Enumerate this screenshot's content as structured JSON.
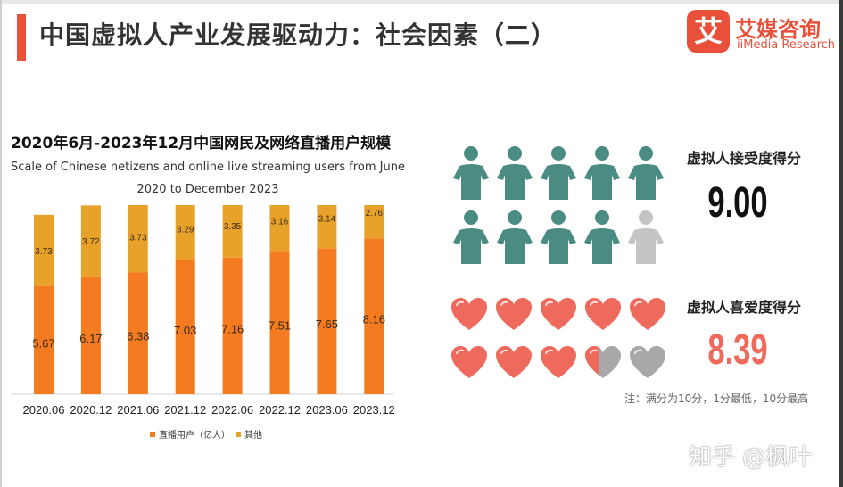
{
  "header": {
    "title": "中国虚拟人产业发展驱动力：社会因素（二）",
    "logo_mark": "艾",
    "logo_cn": "艾媒咨询",
    "logo_en": "iiMedia Research"
  },
  "chart_data": {
    "type": "bar",
    "stacked": true,
    "title": "2020年6月-2023年12月中国网民及网络直播用户规模",
    "subtitle_line1": "Scale of Chinese netizens and online live streaming users from June",
    "subtitle_line2": "2020 to December 2023",
    "categories": [
      "2020.06",
      "2020.12",
      "2021.06",
      "2021.12",
      "2022.06",
      "2022.12",
      "2023.06",
      "2023.12"
    ],
    "series": [
      {
        "name": "直播用户（亿人）",
        "color": "#f47b20",
        "values": [
          5.67,
          6.17,
          6.38,
          7.03,
          7.16,
          7.51,
          7.65,
          8.16
        ]
      },
      {
        "name": "其他",
        "color": "#e8a22a",
        "values": [
          3.73,
          3.72,
          3.73,
          3.29,
          3.35,
          3.16,
          3.14,
          2.76
        ]
      }
    ],
    "legend_position": "bottom",
    "grid": false
  },
  "scores": {
    "acceptance": {
      "label": "虚拟人接受度得分",
      "value": "9.00",
      "icon": "person-icon",
      "filled": 9,
      "total": 10,
      "color": "#4a8c82",
      "empty_color": "#c4c4c4",
      "value_color": "#111111"
    },
    "likeability": {
      "label": "虚拟人喜爱度得分",
      "value": "8.39",
      "icon": "heart-icon",
      "fraction": 0.839,
      "total": 10,
      "color": "#ee6a5c",
      "empty_color": "#a8a8a8",
      "value_color": "#ee6a5c"
    }
  },
  "note": "注：满分为10分，1分最低，10分最高",
  "watermark": "知乎 @枫叶"
}
